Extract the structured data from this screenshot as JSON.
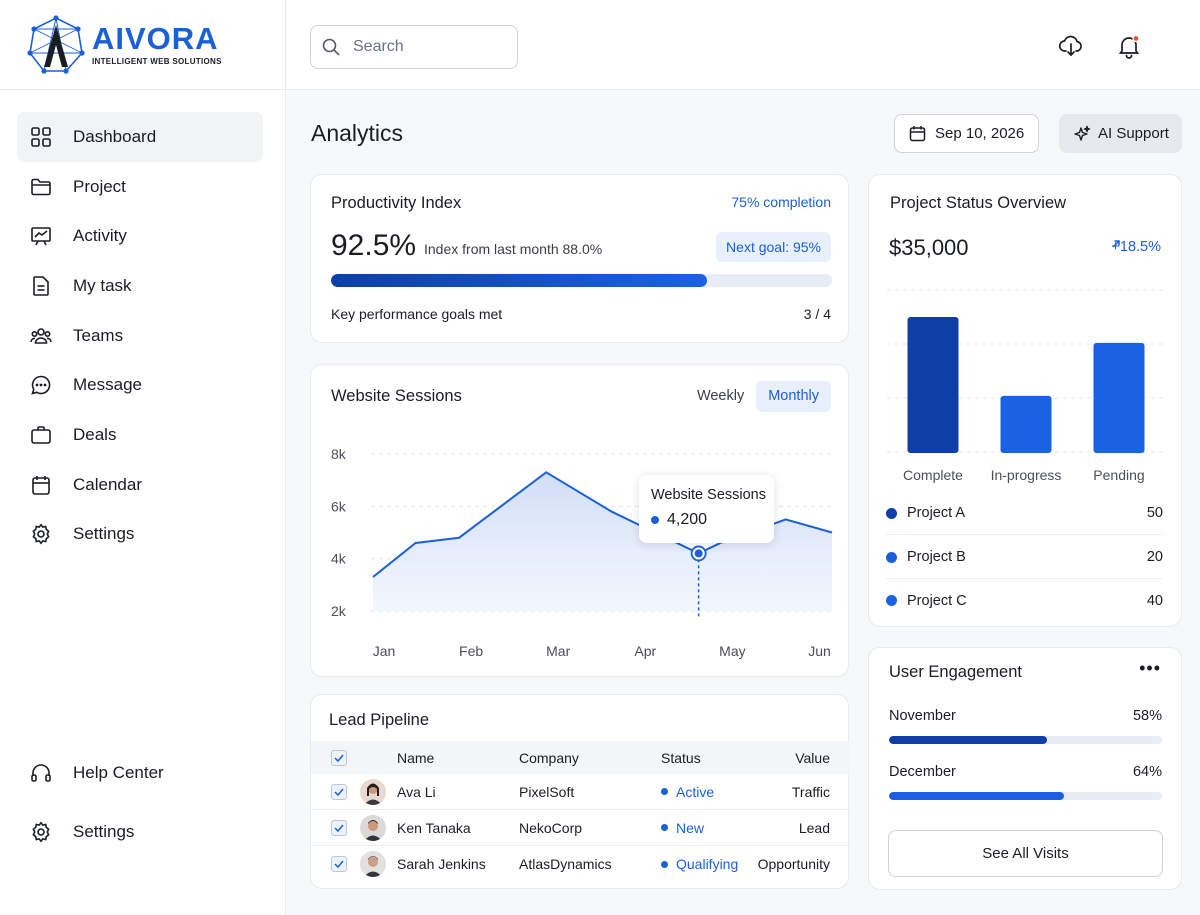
{
  "brand": {
    "name": "AIVORA",
    "tagline": "INTELLIGENT WEB SOLUTIONS",
    "color": "#1b5fd9"
  },
  "sidebar": {
    "items": [
      {
        "label": "Dashboard",
        "icon": "grid-icon",
        "active": true
      },
      {
        "label": "Project",
        "icon": "folder-icon"
      },
      {
        "label": "Activity",
        "icon": "chart-board-icon"
      },
      {
        "label": "My task",
        "icon": "document-icon"
      },
      {
        "label": "Teams",
        "icon": "people-icon"
      },
      {
        "label": "Message",
        "icon": "chat-bubble-icon"
      },
      {
        "label": "Deals",
        "icon": "briefcase-icon"
      },
      {
        "label": "Calendar",
        "icon": "calendar-icon"
      },
      {
        "label": "Settings",
        "icon": "gear-icon"
      }
    ],
    "bottom": [
      {
        "label": "Help Center",
        "icon": "headphones-icon"
      },
      {
        "label": "Settings",
        "icon": "gear-icon"
      }
    ]
  },
  "header": {
    "search_placeholder": "Search"
  },
  "page": {
    "title": "Analytics",
    "date": "Sep 10, 2026",
    "ai_support": "AI Support"
  },
  "productivity": {
    "title": "Productivity Index",
    "completion_label": "75% completion",
    "completion": 0.75,
    "value": "92.5%",
    "subtitle": "Index from last month 88.0%",
    "next_goal": "Next goal: 95%",
    "kpi_label": "Key performance goals met",
    "kpi_value": "3 / 4"
  },
  "sessions": {
    "title": "Website Sessions",
    "tabs": [
      "Weekly",
      "Monthly"
    ],
    "active_tab": "Monthly",
    "tooltip": {
      "title": "Website Sessions",
      "value": "4,200"
    }
  },
  "chart_data": {
    "type": "area",
    "categories": [
      "Jan",
      "Feb",
      "Mar",
      "Apr",
      "May",
      "Jun"
    ],
    "x": [
      0,
      0.5,
      1,
      2,
      2.75,
      3.75,
      4,
      4.75,
      5
    ],
    "values": [
      3300,
      4600,
      4800,
      7300,
      5800,
      4200,
      4600,
      5500,
      5000
    ],
    "yticks": [
      "8k",
      "6k",
      "4k",
      "2k"
    ],
    "ylim": [
      2000,
      8000
    ],
    "highlight": {
      "x": 3.75,
      "value": 4200
    },
    "color": "#1b5fd9",
    "grid": true
  },
  "leads": {
    "title": "Lead Pipeline",
    "columns": [
      "Name",
      "Company",
      "Status",
      "Value"
    ],
    "rows": [
      {
        "name": "Ava Li",
        "company": "PixelSoft",
        "status": "Active",
        "value": "Traffic"
      },
      {
        "name": "Ken Tanaka",
        "company": "NekoCorp",
        "status": "New",
        "value": "Lead"
      },
      {
        "name": "Sarah Jenkins",
        "company": "AtlasDynamics",
        "status": "Qualifying",
        "value": "Opportunity"
      }
    ]
  },
  "project_status": {
    "title": "Project Status Overview",
    "amount": "$35,000",
    "growth": "+18.5%",
    "bars": [
      {
        "label": "Complete",
        "value": 100,
        "color": "#0e3fa6"
      },
      {
        "label": "In-progress",
        "value": 42,
        "color": "#1a62e4"
      },
      {
        "label": "Pending",
        "value": 81,
        "color": "#1a62e4"
      }
    ],
    "legend": [
      {
        "label": "Project A",
        "value": "50",
        "color": "#0e3fa6"
      },
      {
        "label": "Project B",
        "value": "20",
        "color": "#1b5fd9"
      },
      {
        "label": "Project C",
        "value": "40",
        "color": "#1a62e4"
      }
    ]
  },
  "engagement": {
    "title": "User Engagement",
    "rows": [
      {
        "label": "November",
        "percent": "58%",
        "fraction": 0.58,
        "color": "#0e3fa6"
      },
      {
        "label": "December",
        "percent": "64%",
        "fraction": 0.64,
        "color": "#1a5fe0"
      }
    ],
    "button": "See All Visits"
  }
}
